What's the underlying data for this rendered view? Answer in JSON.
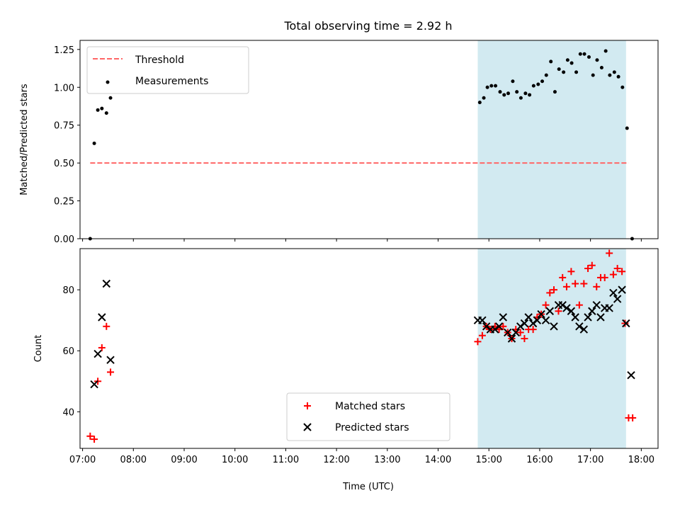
{
  "colors": {
    "threshold": "#ff6666",
    "measurement": "#000000",
    "matched": "#ff0000",
    "predicted": "#000000",
    "observing_window": "#add8e6"
  },
  "chart_data": [
    {
      "type": "scatter",
      "title": "Total observing time = 2.92 h",
      "xlabel": "",
      "ylabel": "Matched/Predicted stars",
      "x_unit": "hours UTC",
      "xlim": [
        6.95,
        18.33
      ],
      "ylim": [
        0,
        1.31
      ],
      "yticks": [
        "0.00",
        "0.25",
        "0.50",
        "0.75",
        "1.00",
        "1.25"
      ],
      "observing_window": [
        14.78,
        17.7
      ],
      "legend_position": "upper-left",
      "series": [
        {
          "name": "Threshold",
          "style": "dashed-line",
          "points": [
            [
              7.15,
              0.5
            ],
            [
              17.75,
              0.5
            ]
          ]
        },
        {
          "name": "Measurements",
          "style": "dot",
          "points": [
            [
              7.15,
              0.0
            ],
            [
              7.23,
              0.63
            ],
            [
              7.3,
              0.85
            ],
            [
              7.38,
              0.86
            ],
            [
              7.47,
              0.83
            ],
            [
              7.55,
              0.93
            ],
            [
              14.82,
              0.9
            ],
            [
              14.9,
              0.93
            ],
            [
              14.97,
              1.0
            ],
            [
              15.05,
              1.01
            ],
            [
              15.13,
              1.01
            ],
            [
              15.22,
              0.97
            ],
            [
              15.3,
              0.95
            ],
            [
              15.38,
              0.96
            ],
            [
              15.47,
              1.04
            ],
            [
              15.55,
              0.97
            ],
            [
              15.63,
              0.93
            ],
            [
              15.72,
              0.96
            ],
            [
              15.8,
              0.95
            ],
            [
              15.88,
              1.01
            ],
            [
              15.97,
              1.02
            ],
            [
              16.05,
              1.04
            ],
            [
              16.13,
              1.08
            ],
            [
              16.22,
              1.17
            ],
            [
              16.3,
              0.97
            ],
            [
              16.38,
              1.12
            ],
            [
              16.47,
              1.1
            ],
            [
              16.55,
              1.18
            ],
            [
              16.63,
              1.16
            ],
            [
              16.72,
              1.1
            ],
            [
              16.8,
              1.22
            ],
            [
              16.88,
              1.22
            ],
            [
              16.97,
              1.2
            ],
            [
              17.05,
              1.08
            ],
            [
              17.13,
              1.18
            ],
            [
              17.22,
              1.13
            ],
            [
              17.3,
              1.24
            ],
            [
              17.38,
              1.08
            ],
            [
              17.47,
              1.1
            ],
            [
              17.55,
              1.07
            ],
            [
              17.63,
              1.0
            ],
            [
              17.72,
              0.73
            ],
            [
              17.82,
              0.0
            ]
          ]
        }
      ]
    },
    {
      "type": "scatter",
      "title": "",
      "xlabel": "Time (UTC)",
      "ylabel": "Count",
      "x_unit": "hours UTC",
      "xlim": [
        6.95,
        18.33
      ],
      "ylim": [
        28,
        93.5
      ],
      "yticks": [
        "40",
        "60",
        "80"
      ],
      "xticks": [
        "07:00",
        "08:00",
        "09:00",
        "10:00",
        "11:00",
        "12:00",
        "13:00",
        "14:00",
        "15:00",
        "16:00",
        "17:00",
        "18:00"
      ],
      "observing_window": [
        14.78,
        17.7
      ],
      "legend_position": "lower-center",
      "series": [
        {
          "name": "Matched stars",
          "marker": "plus",
          "points": [
            [
              7.15,
              32
            ],
            [
              7.23,
              31
            ],
            [
              7.3,
              50
            ],
            [
              7.38,
              61
            ],
            [
              7.47,
              68
            ],
            [
              7.55,
              53
            ],
            [
              14.78,
              63
            ],
            [
              14.87,
              65
            ],
            [
              14.95,
              68
            ],
            [
              15.03,
              67
            ],
            [
              15.12,
              68
            ],
            [
              15.2,
              67
            ],
            [
              15.28,
              68
            ],
            [
              15.37,
              66
            ],
            [
              15.45,
              64
            ],
            [
              15.53,
              67
            ],
            [
              15.62,
              66
            ],
            [
              15.7,
              64
            ],
            [
              15.78,
              67
            ],
            [
              15.87,
              67
            ],
            [
              15.95,
              71
            ],
            [
              16.03,
              72
            ],
            [
              16.12,
              75
            ],
            [
              16.2,
              79
            ],
            [
              16.28,
              80
            ],
            [
              16.37,
              73
            ],
            [
              16.45,
              84
            ],
            [
              16.53,
              81
            ],
            [
              16.62,
              86
            ],
            [
              16.7,
              82
            ],
            [
              16.78,
              75
            ],
            [
              16.87,
              82
            ],
            [
              16.95,
              87
            ],
            [
              17.03,
              88
            ],
            [
              17.12,
              81
            ],
            [
              17.2,
              84
            ],
            [
              17.28,
              84
            ],
            [
              17.37,
              92
            ],
            [
              17.45,
              85
            ],
            [
              17.53,
              87
            ],
            [
              17.62,
              86
            ],
            [
              17.68,
              69
            ],
            [
              17.75,
              38
            ],
            [
              17.83,
              38
            ]
          ]
        },
        {
          "name": "Predicted stars",
          "marker": "cross",
          "points": [
            [
              7.23,
              49
            ],
            [
              7.3,
              59
            ],
            [
              7.38,
              71
            ],
            [
              7.47,
              82
            ],
            [
              7.55,
              57
            ],
            [
              14.78,
              70
            ],
            [
              14.87,
              70
            ],
            [
              14.95,
              68
            ],
            [
              15.03,
              67
            ],
            [
              15.12,
              67
            ],
            [
              15.2,
              68
            ],
            [
              15.28,
              71
            ],
            [
              15.37,
              66
            ],
            [
              15.45,
              64
            ],
            [
              15.53,
              66
            ],
            [
              15.62,
              68
            ],
            [
              15.7,
              69
            ],
            [
              15.78,
              71
            ],
            [
              15.87,
              69
            ],
            [
              15.95,
              70
            ],
            [
              16.03,
              72
            ],
            [
              16.12,
              70
            ],
            [
              16.2,
              73
            ],
            [
              16.28,
              68
            ],
            [
              16.37,
              75
            ],
            [
              16.45,
              75
            ],
            [
              16.53,
              74
            ],
            [
              16.62,
              73
            ],
            [
              16.7,
              71
            ],
            [
              16.78,
              68
            ],
            [
              16.87,
              67
            ],
            [
              16.95,
              71
            ],
            [
              17.03,
              73
            ],
            [
              17.12,
              75
            ],
            [
              17.2,
              71
            ],
            [
              17.28,
              74
            ],
            [
              17.37,
              74
            ],
            [
              17.45,
              79
            ],
            [
              17.53,
              77
            ],
            [
              17.62,
              80
            ],
            [
              17.7,
              69
            ],
            [
              17.8,
              52
            ]
          ]
        }
      ]
    }
  ]
}
